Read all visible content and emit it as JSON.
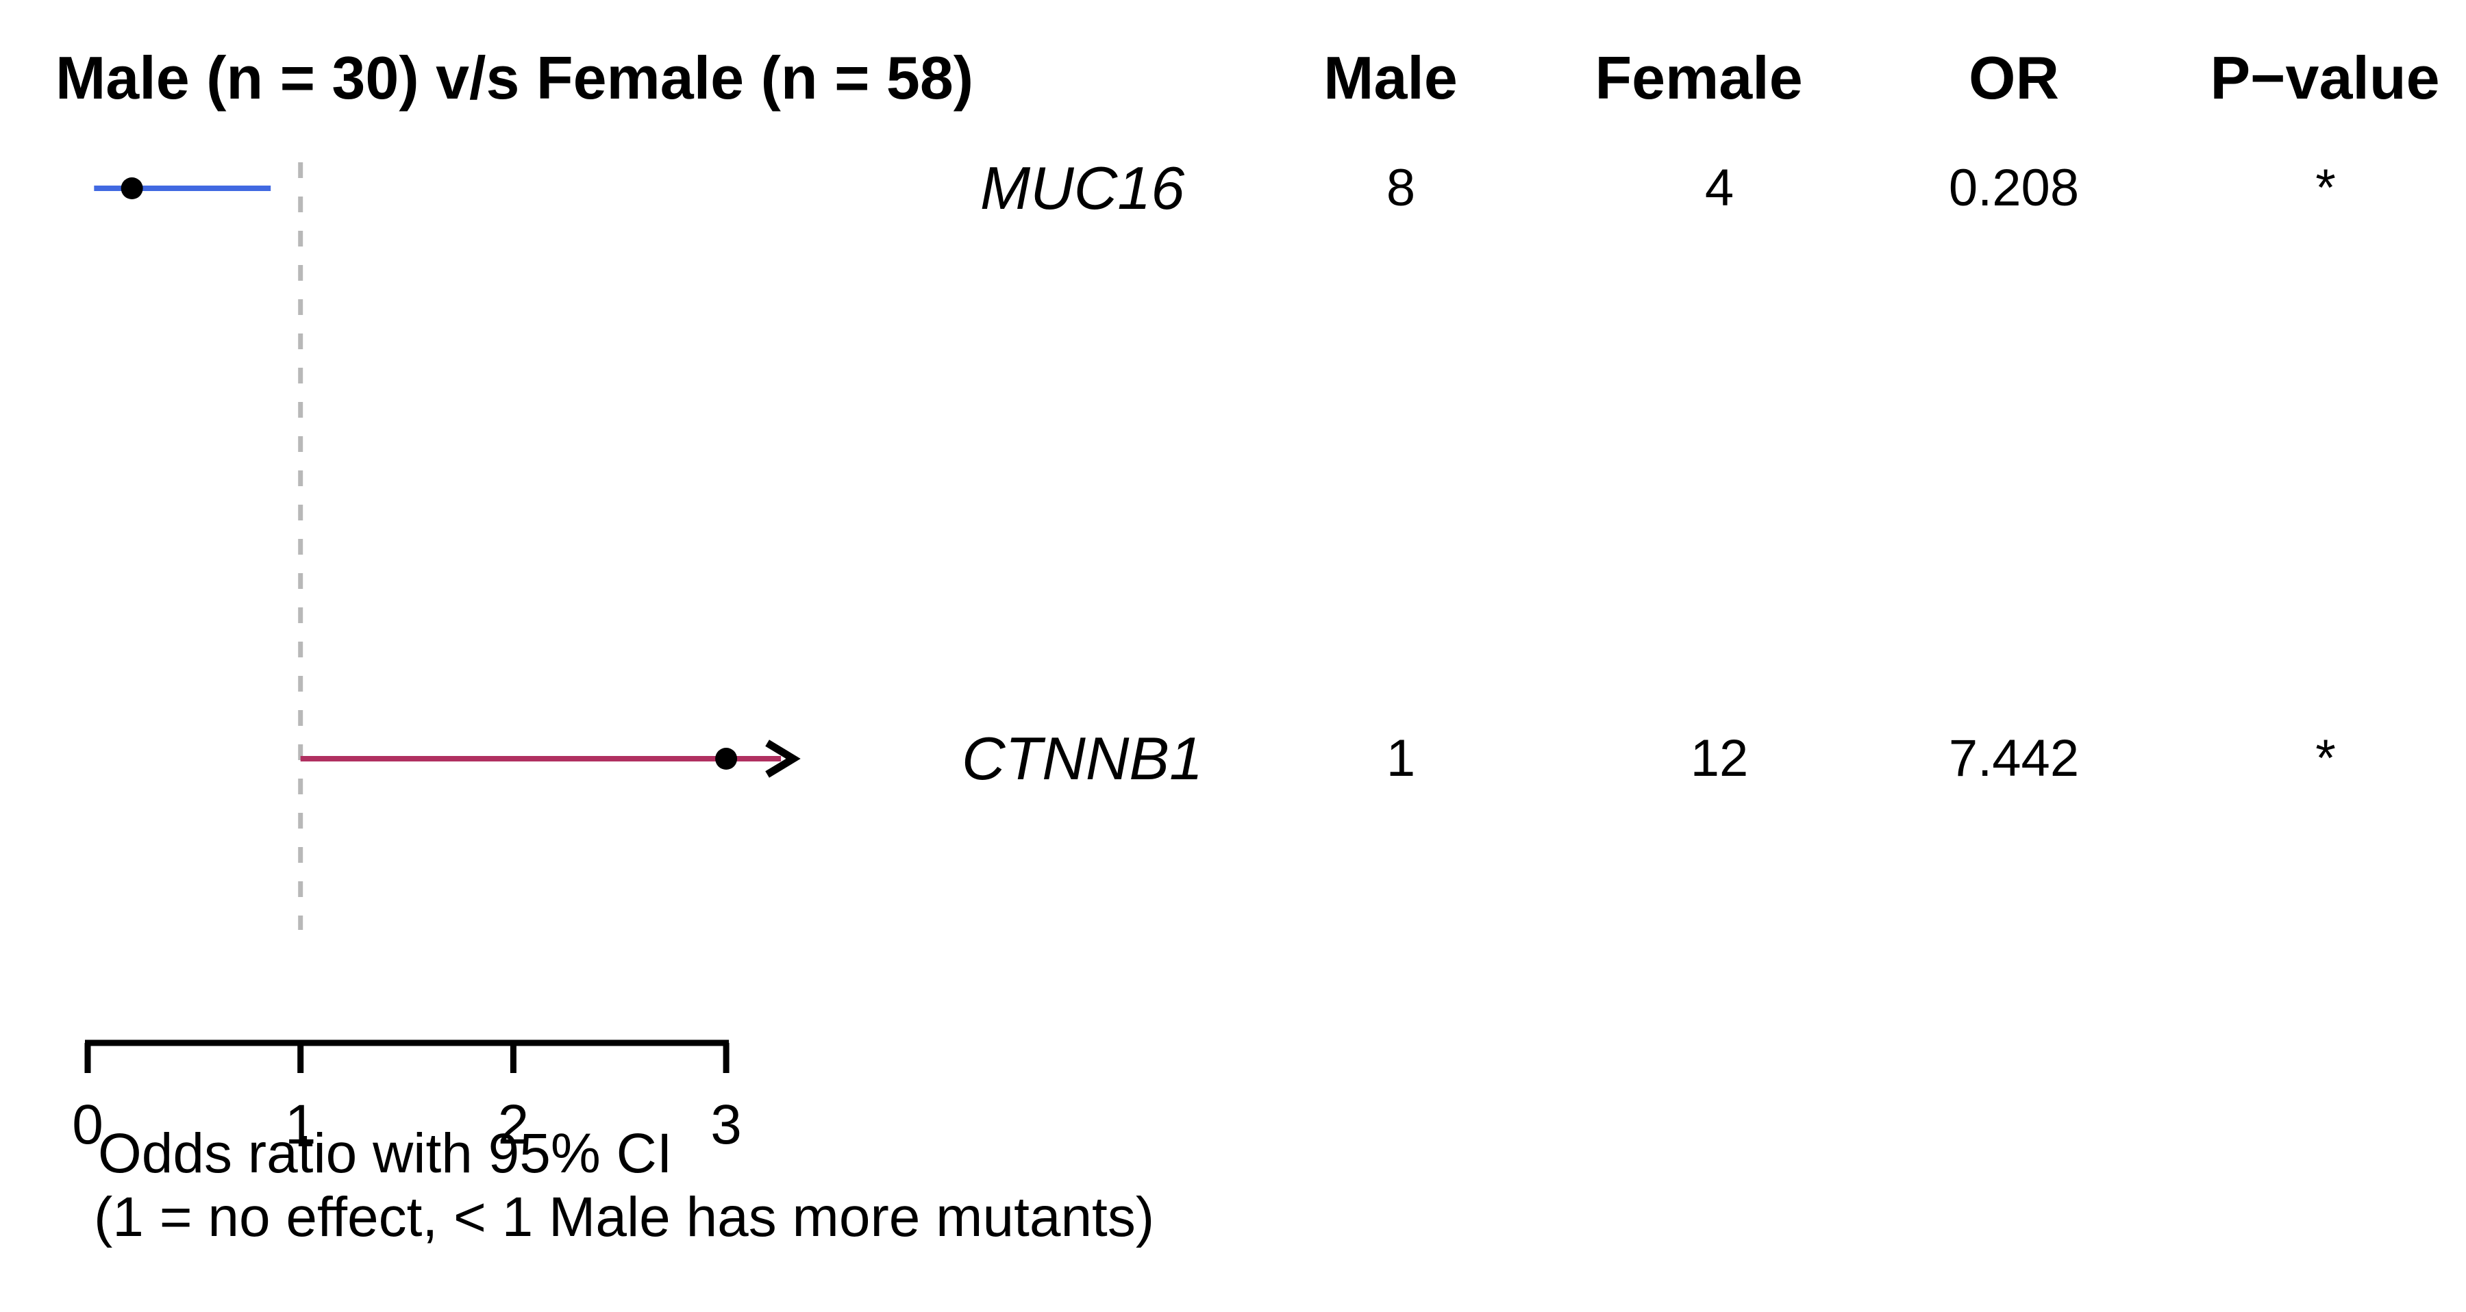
{
  "title": "Male (n = 30) v/s Female (n = 58)",
  "colors": {
    "male_dominant_line": "#4169E1",
    "female_dominant_line": "#B03060",
    "point_marker": "#000000",
    "reference_dashed_line": "#b8b8b8",
    "axis": "#000000",
    "text": "#000000",
    "background": "#ffffff"
  },
  "table": {
    "headers": [
      {
        "key": "male",
        "label": "Male"
      },
      {
        "key": "female",
        "label": "Female"
      },
      {
        "key": "or",
        "label": "OR"
      },
      {
        "key": "pvalue",
        "label": "P−value"
      }
    ],
    "rows": [
      {
        "gene": "MUC16",
        "male": "8",
        "female": "4",
        "or": "0.208",
        "significance": "*"
      },
      {
        "gene": "CTNNB1",
        "male": "1",
        "female": "12",
        "or": "7.442",
        "significance": "*"
      }
    ]
  },
  "chart_data": {
    "type": "forest",
    "x_axis": {
      "ticks": [
        0,
        1,
        2,
        3
      ],
      "range": [
        0,
        3
      ],
      "label_line1": "Odds ratio with 95% CI",
      "label_line2": "(1 = no effect, < 1 Male has more mutants)",
      "reference_line_at": 1
    },
    "points": [
      {
        "gene": "MUC16",
        "or": 0.208,
        "ci_low": 0.03,
        "ci_high": 0.86,
        "truncated_high": false,
        "color": "#4169E1"
      },
      {
        "gene": "CTNNB1",
        "or": 7.442,
        "ci_low": 1.0,
        "ci_high": 3.3,
        "truncated_high": true,
        "color": "#B03060"
      }
    ],
    "significance_marker": "*"
  }
}
